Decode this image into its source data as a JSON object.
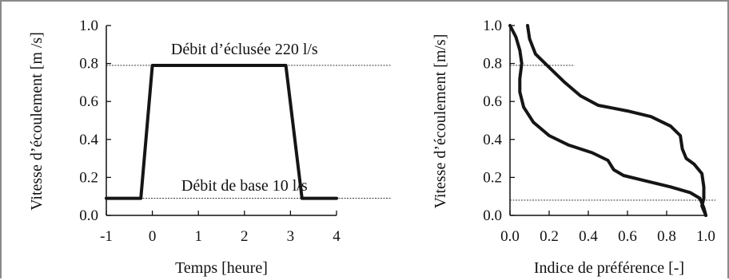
{
  "chart_data": [
    {
      "type": "line",
      "xlabel": "Temps [heure]",
      "ylabel": "Vitesse d’écoulement [m /s]",
      "xlim": [
        -1,
        4
      ],
      "ylim": [
        0,
        1.0
      ],
      "xticks": [
        "-1",
        "0",
        "1",
        "2",
        "3",
        "4"
      ],
      "yticks": [
        "0.0",
        "0.2",
        "0.4",
        "0.6",
        "0.8",
        "1.0"
      ],
      "grid": false,
      "series": [
        {
          "x": [
            -1.0,
            -0.25,
            0.0,
            2.9,
            3.25,
            4.0
          ],
          "y": [
            0.09,
            0.09,
            0.79,
            0.79,
            0.09,
            0.09
          ]
        }
      ],
      "reference_lines": [
        {
          "y": 0.79,
          "x": [
            -1.0,
            5.2
          ]
        },
        {
          "y": 0.09,
          "x": [
            -1.0,
            5.2
          ]
        }
      ],
      "annotations": [
        {
          "text": "Débit d’éclusée 220 l/s",
          "x": 2.0,
          "y": 0.875
        },
        {
          "text": "Débit de base 10 l/s",
          "x": 2.0,
          "y": 0.155
        }
      ]
    },
    {
      "type": "line",
      "xlabel": "Indice de préférence [-]",
      "ylabel": "Vitesse d’écoulement [m/s]",
      "xlim": [
        0.0,
        1.0
      ],
      "ylim": [
        0.0,
        1.0
      ],
      "xticks": [
        "0.0",
        "0.2",
        "0.4",
        "0.6",
        "0.8",
        "1.0"
      ],
      "yticks": [
        "0.0",
        "0.2",
        "0.4",
        "0.6",
        "0.8",
        "1.0"
      ],
      "grid": false,
      "series": [
        {
          "x": [
            0.0,
            0.03,
            0.05,
            0.06,
            0.05,
            0.05,
            0.07,
            0.12,
            0.2,
            0.3,
            0.42,
            0.5,
            0.53,
            0.58,
            0.7,
            0.82,
            0.92,
            0.97,
            0.99,
            1.0
          ],
          "y": [
            1.0,
            0.94,
            0.87,
            0.8,
            0.72,
            0.65,
            0.57,
            0.49,
            0.42,
            0.37,
            0.33,
            0.29,
            0.24,
            0.21,
            0.18,
            0.15,
            0.12,
            0.09,
            0.04,
            0.0
          ]
        },
        {
          "x": [
            0.09,
            0.1,
            0.13,
            0.2,
            0.28,
            0.36,
            0.45,
            0.6,
            0.72,
            0.82,
            0.87,
            0.88,
            0.9,
            0.94,
            0.98,
            0.99,
            0.99,
            0.98,
            1.0
          ],
          "y": [
            1.0,
            0.93,
            0.85,
            0.78,
            0.7,
            0.63,
            0.58,
            0.55,
            0.52,
            0.47,
            0.42,
            0.35,
            0.3,
            0.27,
            0.22,
            0.15,
            0.09,
            0.05,
            0.0
          ]
        }
      ],
      "reference_lines": [
        {
          "y": 0.79,
          "x": [
            0.0,
            0.33
          ]
        },
        {
          "y": 0.08,
          "x": [
            0.0,
            1.05
          ]
        }
      ],
      "annotations": []
    }
  ]
}
